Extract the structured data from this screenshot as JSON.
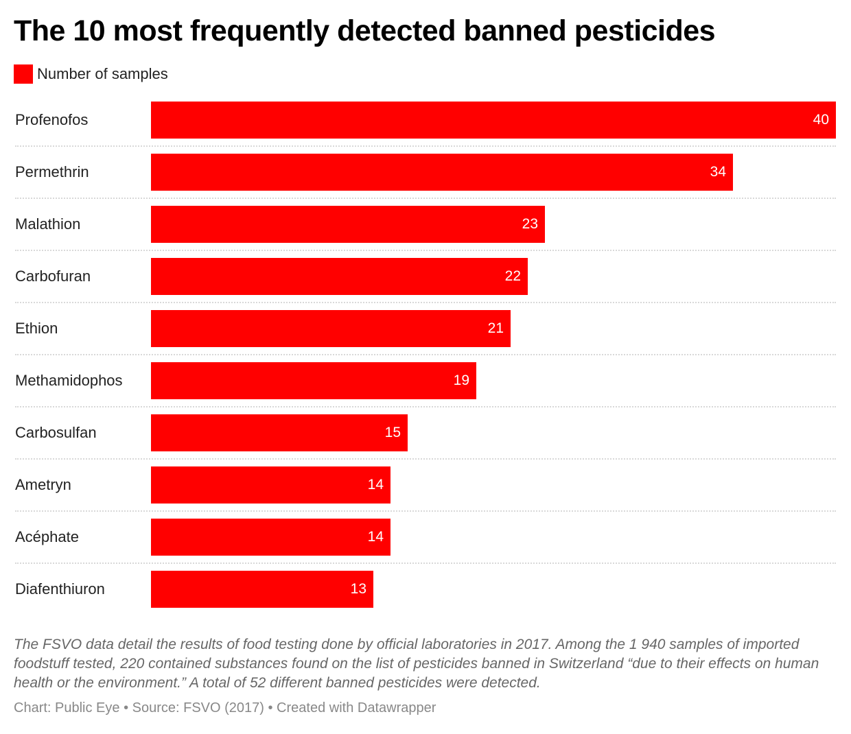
{
  "title": "The 10 most frequently detected banned pesticides",
  "legend": {
    "label": "Number of samples",
    "color": "#ff0000"
  },
  "chart_data": {
    "type": "bar",
    "orientation": "horizontal",
    "categories": [
      "Profenofos",
      "Permethrin",
      "Malathion",
      "Carbofuran",
      "Ethion",
      "Methamidophos",
      "Carbosulfan",
      "Ametryn",
      "Acéphate",
      "Diafenthiuron"
    ],
    "series": [
      {
        "name": "Number of samples",
        "values": [
          40,
          34,
          23,
          22,
          21,
          19,
          15,
          14,
          14,
          13
        ],
        "color": "#ff0000"
      }
    ],
    "xlim": [
      0,
      40
    ],
    "data_labels": true,
    "grid": false,
    "legend_position": "top-left"
  },
  "notes": "The FSVO data detail the results of food testing done by official laboratories in 2017. Among the 1 940 samples of imported foodstuff tested, 220 contained substances found on the list of pesticides banned in Switzerland “due to their effects on human health or the environment.” A total of 52 different banned pesticides were detected.",
  "footer": "Chart: Public Eye • Source: FSVO (2017) • Created with Datawrapper"
}
